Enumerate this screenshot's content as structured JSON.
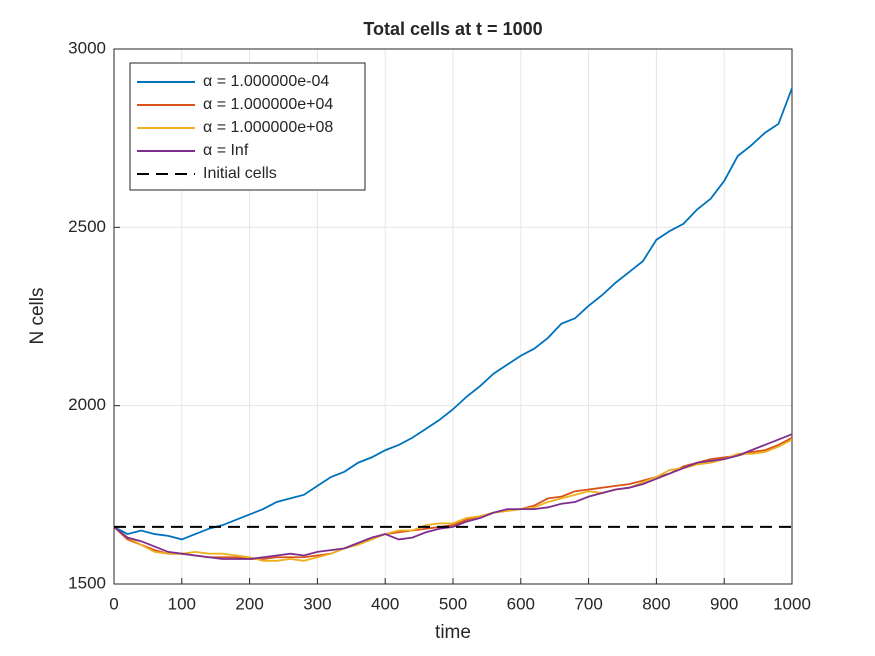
{
  "chart_data": {
    "type": "line",
    "title": "Total cells at t = 1000",
    "xlabel": "time",
    "ylabel": "N cells",
    "x": [
      0,
      20,
      40,
      60,
      80,
      100,
      120,
      140,
      160,
      180,
      200,
      220,
      240,
      260,
      280,
      300,
      320,
      340,
      360,
      380,
      400,
      420,
      440,
      460,
      480,
      500,
      520,
      540,
      560,
      580,
      600,
      620,
      640,
      660,
      680,
      700,
      720,
      740,
      760,
      780,
      800,
      820,
      840,
      860,
      880,
      900,
      920,
      940,
      960,
      980,
      1000
    ],
    "series": [
      {
        "name": "α = 1.000000e-04",
        "color": "#0072BD",
        "values": [
          1660,
          1640,
          1650,
          1640,
          1635,
          1625,
          1640,
          1655,
          1665,
          1680,
          1695,
          1710,
          1730,
          1740,
          1750,
          1775,
          1800,
          1815,
          1840,
          1855,
          1875,
          1890,
          1910,
          1935,
          1960,
          1990,
          2025,
          2055,
          2090,
          2115,
          2140,
          2160,
          2190,
          2230,
          2245,
          2280,
          2310,
          2345,
          2375,
          2405,
          2465,
          2490,
          2510,
          2550,
          2580,
          2630,
          2700,
          2730,
          2765,
          2790,
          2890
        ]
      },
      {
        "name": "α = 1.000000e+04",
        "color": "#D95319",
        "values": [
          1660,
          1625,
          1610,
          1595,
          1585,
          1585,
          1580,
          1575,
          1575,
          1575,
          1570,
          1570,
          1575,
          1575,
          1575,
          1580,
          1585,
          1600,
          1615,
          1625,
          1640,
          1645,
          1650,
          1655,
          1660,
          1665,
          1680,
          1690,
          1700,
          1705,
          1710,
          1720,
          1740,
          1745,
          1760,
          1765,
          1770,
          1775,
          1780,
          1790,
          1800,
          1810,
          1830,
          1840,
          1850,
          1855,
          1860,
          1870,
          1875,
          1890,
          1910
        ]
      },
      {
        "name": "α = 1.000000e+08",
        "color": "#EDB120",
        "values": [
          1660,
          1630,
          1610,
          1590,
          1585,
          1585,
          1590,
          1585,
          1585,
          1580,
          1575,
          1565,
          1565,
          1570,
          1565,
          1575,
          1585,
          1600,
          1610,
          1625,
          1640,
          1650,
          1650,
          1665,
          1670,
          1670,
          1685,
          1690,
          1700,
          1705,
          1710,
          1715,
          1730,
          1740,
          1750,
          1760,
          1755,
          1765,
          1770,
          1785,
          1800,
          1820,
          1825,
          1835,
          1840,
          1850,
          1865,
          1865,
          1870,
          1885,
          1905
        ]
      },
      {
        "name": "α = Inf",
        "color": "#7E2F8E",
        "values": [
          1660,
          1630,
          1620,
          1605,
          1590,
          1585,
          1580,
          1575,
          1570,
          1570,
          1570,
          1575,
          1580,
          1585,
          1580,
          1590,
          1595,
          1600,
          1615,
          1630,
          1640,
          1625,
          1630,
          1645,
          1655,
          1660,
          1675,
          1685,
          1700,
          1710,
          1710,
          1710,
          1715,
          1725,
          1730,
          1745,
          1755,
          1765,
          1770,
          1780,
          1795,
          1810,
          1825,
          1840,
          1845,
          1850,
          1860,
          1875,
          1890,
          1905,
          1920
        ]
      },
      {
        "name": "Initial cells",
        "color": "#000000",
        "dashed": true,
        "x": [
          0,
          1000
        ],
        "values": [
          1660,
          1660
        ]
      }
    ],
    "xlim": [
      0,
      1000
    ],
    "xticks": [
      0,
      100,
      200,
      300,
      400,
      500,
      600,
      700,
      800,
      900,
      1000
    ],
    "ylim": [
      1500,
      3000
    ],
    "yticks": [
      1500,
      2000,
      2500,
      3000
    ],
    "grid": true,
    "legend": "northwest"
  }
}
